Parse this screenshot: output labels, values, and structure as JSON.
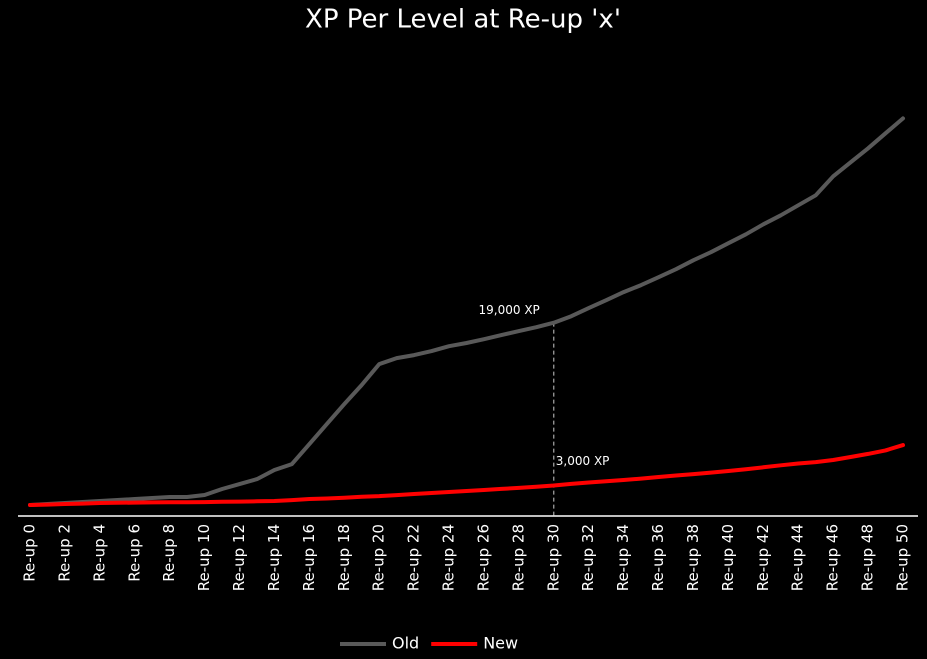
{
  "chart_data": {
    "type": "line",
    "title": "XP Per Level at Re-up 'x'",
    "categories": [
      "Re-up 0",
      null,
      "Re-up 2",
      null,
      "Re-up 4",
      null,
      "Re-up 6",
      null,
      "Re-up 8",
      null,
      "Re-up 10",
      null,
      "Re-up 12",
      null,
      "Re-up 14",
      null,
      "Re-up 16",
      null,
      "Re-up 18",
      null,
      "Re-up 20",
      null,
      "Re-up 22",
      null,
      "Re-up 24",
      null,
      "Re-up 26",
      null,
      "Re-up 28",
      null,
      "Re-up 30",
      null,
      "Re-up 32",
      null,
      "Re-up 34",
      null,
      "Re-up 36",
      null,
      "Re-up 38",
      null,
      "Re-up 40",
      null,
      "Re-up 42",
      null,
      "Re-up 44",
      null,
      "Re-up 46",
      null,
      "Re-up 48",
      null,
      "Re-up 50"
    ],
    "series": [
      {
        "name": "Old",
        "color": "#595959",
        "values": [
          1080,
          1180,
          1280,
          1380,
          1470,
          1570,
          1670,
          1770,
          1870,
          1870,
          2060,
          2650,
          3140,
          3630,
          4520,
          5100,
          7070,
          9030,
          11000,
          12870,
          14930,
          15520,
          15810,
          16210,
          16690,
          17000,
          17380,
          17780,
          18170,
          18560,
          19000,
          19640,
          20430,
          21210,
          22000,
          22690,
          23470,
          24260,
          25140,
          25930,
          26810,
          27690,
          28670,
          29550,
          30540,
          31520,
          33390,
          34760,
          36140,
          37610,
          39080
        ]
      },
      {
        "name": "New",
        "color": "#ff0000",
        "values": [
          1080,
          1120,
          1180,
          1220,
          1280,
          1300,
          1320,
          1340,
          1350,
          1360,
          1370,
          1400,
          1420,
          1440,
          1470,
          1560,
          1670,
          1720,
          1800,
          1900,
          1960,
          2050,
          2160,
          2260,
          2360,
          2460,
          2560,
          2660,
          2760,
          2880,
          3000,
          3150,
          3290,
          3410,
          3540,
          3680,
          3830,
          3980,
          4120,
          4270,
          4420,
          4600,
          4790,
          4980,
          5160,
          5300,
          5500,
          5800,
          6100,
          6450,
          6970
        ]
      }
    ],
    "annotations": [
      "19,000 XP",
      "3,000 XP"
    ],
    "ylim": [
      0,
      40000
    ]
  }
}
